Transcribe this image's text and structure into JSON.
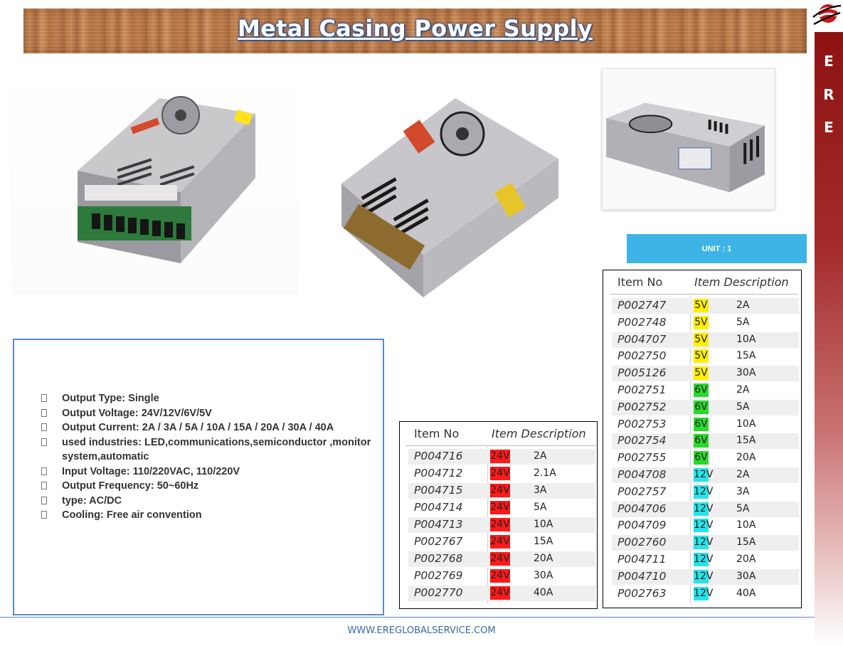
{
  "header": {
    "title": "Metal Casing Power Supply"
  },
  "sidebar": {
    "letters": [
      "E",
      "R",
      "E"
    ]
  },
  "unit_label": "UNIT : 1",
  "specs": [
    "Output Type: Single",
    "Output Voltage: 24V/12V/6V/5V",
    "Output Current:  2A / 3A / 5A / 10A / 15A / 20A / 30A / 40A",
    "used industries: LED,communications,semiconductor ,monitor system,automatic",
    "Input Voltage: 110/220VAC, 110/220V",
    "Output Frequency: 50~60Hz",
    "type: AC/DC",
    "Cooling: Free air convention"
  ],
  "table_24v": {
    "col_item_no": "Item No",
    "col_description": "Item Description",
    "rows": [
      {
        "item": "P004716",
        "voltage": "24V",
        "current": "2A"
      },
      {
        "item": "P004712",
        "voltage": "24V",
        "current": "2.1A"
      },
      {
        "item": "P004715",
        "voltage": "24V",
        "current": "3A"
      },
      {
        "item": "P004714",
        "voltage": "24V",
        "current": "5A"
      },
      {
        "item": "P004713",
        "voltage": "24V",
        "current": "10A"
      },
      {
        "item": "P002767",
        "voltage": "24V",
        "current": "15A"
      },
      {
        "item": "P002768",
        "voltage": "24V",
        "current": "20A"
      },
      {
        "item": "P002769",
        "voltage": "24V",
        "current": "30A"
      },
      {
        "item": "P002770",
        "voltage": "24V",
        "current": "40A"
      }
    ]
  },
  "table_main": {
    "col_item_no": "Item No",
    "col_description": "Item Description",
    "rows": [
      {
        "item": "P002747",
        "voltage": "5V",
        "current": "2A"
      },
      {
        "item": "P002748",
        "voltage": "5V",
        "current": "5A"
      },
      {
        "item": "P004707",
        "voltage": "5V",
        "current": "10A"
      },
      {
        "item": "P002750",
        "voltage": "5V",
        "current": "15A"
      },
      {
        "item": "P005126",
        "voltage": "5V",
        "current": "30A"
      },
      {
        "item": "P002751",
        "voltage": "6V",
        "current": "2A"
      },
      {
        "item": "P002752",
        "voltage": "6V",
        "current": "5A"
      },
      {
        "item": "P002753",
        "voltage": "6V",
        "current": "10A"
      },
      {
        "item": "P002754",
        "voltage": "6V",
        "current": "15A"
      },
      {
        "item": "P002755",
        "voltage": "6V",
        "current": "20A"
      },
      {
        "item": "P004708",
        "voltage": "12V",
        "current": "2A"
      },
      {
        "item": "P002757",
        "voltage": "12V",
        "current": "3A"
      },
      {
        "item": "P004706",
        "voltage": "12V",
        "current": "5A"
      },
      {
        "item": "P004709",
        "voltage": "12V",
        "current": "10A"
      },
      {
        "item": "P002760",
        "voltage": "12V",
        "current": "15A"
      },
      {
        "item": "P004711",
        "voltage": "12V",
        "current": "20A"
      },
      {
        "item": "P004710",
        "voltage": "12V",
        "current": "30A"
      },
      {
        "item": "P002763",
        "voltage": "12V",
        "current": "40A"
      }
    ]
  },
  "voltage_colors": {
    "24V": "#ff1a1a",
    "12V": "#27e3e8",
    "6V": "#2bd92b",
    "5V": "#ffee00"
  },
  "colors": {
    "accent_blue": "#3db4e5",
    "sidebar_red": "#8e1212",
    "border_blue": "#5b87c7"
  },
  "footer": {
    "url": "WWW.EREGLOBALSERVICE.COM"
  }
}
